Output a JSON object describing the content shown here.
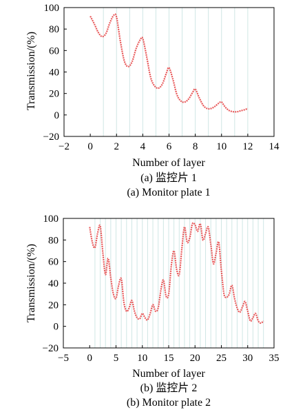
{
  "chart_data": [
    {
      "type": "line",
      "xlabel": "Number of layer",
      "ylabel": "Transmission/(%)",
      "caption_cn": "(a) 监控片 1",
      "caption_en": "(a) Monitor plate 1",
      "xlim": [
        -2,
        14
      ],
      "ylim": [
        -20,
        100
      ],
      "xticks": [
        -2,
        0,
        2,
        4,
        6,
        8,
        10,
        12,
        14
      ],
      "yticks": [
        -20,
        0,
        20,
        40,
        60,
        80,
        100
      ],
      "tick_text": {
        "-20": "−20",
        "-2": "−2"
      },
      "vlines": [
        1,
        2,
        3,
        4,
        5,
        6,
        7,
        8,
        9,
        10,
        11,
        12
      ],
      "line_color": "#e8595a",
      "vline_color": "#cfe6e4",
      "series": [
        {
          "x": [
            0,
            0.3,
            0.6,
            0.9,
            1.2,
            1.5,
            1.8,
            2.0,
            2.3,
            2.6,
            2.9,
            3.2,
            3.5,
            3.8,
            4.0,
            4.3,
            4.6,
            4.9,
            5.2,
            5.5,
            5.8,
            6.0,
            6.3,
            6.6,
            6.9,
            7.2,
            7.5,
            7.8,
            8.0,
            8.3,
            8.6,
            8.9,
            9.2,
            9.5,
            9.8,
            10.0,
            10.3,
            10.6,
            10.9,
            11.2,
            11.5,
            11.8,
            12.0
          ],
          "y": [
            92,
            85,
            77,
            73,
            76,
            86,
            93,
            91,
            68,
            50,
            45,
            50,
            62,
            70,
            71,
            54,
            35,
            27,
            25,
            29,
            39,
            44,
            33,
            19,
            13,
            12,
            15,
            21,
            24,
            16,
            9,
            6,
            6,
            8,
            11,
            12,
            7,
            4,
            3,
            3,
            4,
            5,
            6
          ]
        }
      ]
    },
    {
      "type": "line",
      "xlabel": "Number of layer",
      "ylabel": "Transmission/(%)",
      "caption_cn": "(b) 监控片 2",
      "caption_en": "(b) Monitor plate 2",
      "xlim": [
        -5,
        35
      ],
      "ylim": [
        -20,
        100
      ],
      "xticks": [
        -5,
        0,
        5,
        10,
        15,
        20,
        25,
        30,
        35
      ],
      "yticks": [
        -20,
        0,
        20,
        40,
        60,
        80,
        100
      ],
      "tick_text": {
        "-20": "−20",
        "-5": "−5"
      },
      "vlines": [
        1,
        2,
        3,
        4,
        5,
        6,
        7,
        8,
        9,
        10,
        11,
        12,
        13,
        14,
        15,
        16,
        17,
        18,
        19,
        20,
        21,
        22,
        23,
        24,
        25,
        26,
        27,
        28,
        29,
        30,
        31,
        32,
        33
      ],
      "line_color": "#e8595a",
      "vline_color": "#cfe6e4",
      "series": [
        {
          "x": [
            0,
            0.5,
            1,
            1.5,
            2,
            2.5,
            3,
            3.5,
            4,
            4.5,
            5,
            5.5,
            6,
            6.5,
            7,
            7.5,
            8,
            8.5,
            9,
            9.5,
            10,
            10.5,
            11,
            11.5,
            12,
            12.5,
            13,
            13.5,
            14,
            14.5,
            15,
            15.5,
            16,
            16.5,
            17,
            17.5,
            18,
            18.5,
            19,
            19.5,
            20,
            20.5,
            21,
            21.5,
            22,
            22.5,
            23,
            23.5,
            24,
            24.5,
            25,
            25.5,
            26,
            26.5,
            27,
            27.5,
            28,
            28.5,
            29,
            29.5,
            30,
            30.5,
            31,
            31.5,
            32,
            32.5,
            33
          ],
          "y": [
            92,
            78,
            73,
            86,
            93,
            68,
            48,
            63,
            45,
            30,
            26,
            38,
            44,
            22,
            14,
            17,
            24,
            14,
            8,
            7,
            12,
            8,
            6,
            12,
            20,
            14,
            17,
            33,
            43,
            28,
            30,
            56,
            70,
            53,
            48,
            72,
            92,
            78,
            82,
            95,
            94,
            88,
            95,
            80,
            86,
            92,
            76,
            58,
            68,
            78,
            52,
            30,
            27,
            30,
            38,
            26,
            17,
            13,
            18,
            23,
            14,
            5,
            8,
            12,
            5,
            3,
            5
          ]
        }
      ]
    }
  ]
}
